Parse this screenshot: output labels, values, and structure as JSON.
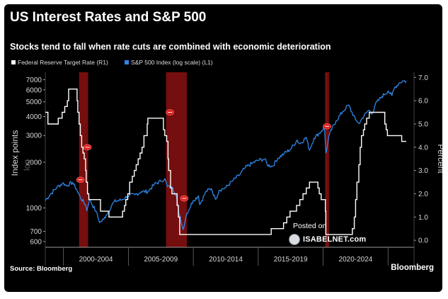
{
  "chart_data": {
    "type": "line",
    "title": "US Interest Rates and S&P 500",
    "subtitle": "Stocks tend to fall when rate cuts are combined with economic deterioration",
    "legend": [
      {
        "name": "Federal Reserve Target Rate (R1)",
        "color": "#ffffff"
      },
      {
        "name": "S&P 500 Index (log scale) (L1)",
        "color": "#2f86e8"
      }
    ],
    "xlim": [
      1998.6,
      2027.0
    ],
    "x_ticks": [
      "2000-2004",
      "2005-2009",
      "2010-2014",
      "2015-2019",
      "2020-2024"
    ],
    "left_axis": {
      "label": "Index points",
      "label2": "log",
      "scale": "log",
      "range": [
        550,
        7500
      ],
      "ticks": [
        600,
        700,
        1000,
        2000,
        3000,
        4000,
        5000,
        6000,
        7000
      ]
    },
    "right_axis": {
      "label": "Percent",
      "range": [
        -0.3,
        7.1
      ],
      "ticks": [
        0.0,
        1.0,
        2.0,
        3.0,
        4.0,
        5.0,
        6.0,
        7.0
      ]
    },
    "recessions": [
      [
        2001.2,
        2001.9
      ],
      [
        2007.9,
        2009.5
      ],
      [
        2020.15,
        2020.45
      ]
    ],
    "rate_cut_markers": [
      {
        "x": 2001.3,
        "rate": 2.6
      },
      {
        "x": 2001.85,
        "rate": 4.0
      },
      {
        "x": 2008.2,
        "rate": 5.5
      },
      {
        "x": 2009.3,
        "rate": 1.8
      },
      {
        "x": 2020.3,
        "rate": 4.9
      }
    ],
    "series": [
      {
        "name": "Federal Reserve Target Rate",
        "axis": "right",
        "step": true,
        "points": [
          [
            1998.6,
            5.5
          ],
          [
            1998.8,
            5.0
          ],
          [
            1999.5,
            5.0
          ],
          [
            1999.6,
            5.25
          ],
          [
            1999.9,
            5.5
          ],
          [
            2000.1,
            5.75
          ],
          [
            2000.3,
            6.0
          ],
          [
            2000.4,
            6.5
          ],
          [
            2001.0,
            6.5
          ],
          [
            2001.05,
            6.0
          ],
          [
            2001.1,
            5.5
          ],
          [
            2001.2,
            5.0
          ],
          [
            2001.3,
            4.5
          ],
          [
            2001.4,
            4.0
          ],
          [
            2001.5,
            3.75
          ],
          [
            2001.6,
            3.5
          ],
          [
            2001.7,
            3.0
          ],
          [
            2001.75,
            2.5
          ],
          [
            2001.85,
            2.0
          ],
          [
            2001.95,
            1.75
          ],
          [
            2002.85,
            1.25
          ],
          [
            2003.5,
            1.0
          ],
          [
            2004.5,
            1.0
          ],
          [
            2004.55,
            1.25
          ],
          [
            2004.7,
            1.5
          ],
          [
            2004.8,
            1.75
          ],
          [
            2004.95,
            2.0
          ],
          [
            2005.1,
            2.5
          ],
          [
            2005.3,
            2.75
          ],
          [
            2005.45,
            3.0
          ],
          [
            2005.6,
            3.25
          ],
          [
            2005.75,
            3.5
          ],
          [
            2005.9,
            3.75
          ],
          [
            2006.05,
            4.0
          ],
          [
            2006.2,
            4.5
          ],
          [
            2006.45,
            5.0
          ],
          [
            2006.5,
            5.25
          ],
          [
            2007.6,
            5.25
          ],
          [
            2007.7,
            4.75
          ],
          [
            2007.8,
            4.5
          ],
          [
            2007.95,
            4.25
          ],
          [
            2008.05,
            3.5
          ],
          [
            2008.1,
            3.0
          ],
          [
            2008.25,
            2.25
          ],
          [
            2008.35,
            2.0
          ],
          [
            2008.75,
            1.5
          ],
          [
            2008.85,
            1.0
          ],
          [
            2008.95,
            0.25
          ],
          [
            2015.95,
            0.25
          ],
          [
            2016.0,
            0.5
          ],
          [
            2016.95,
            0.75
          ],
          [
            2017.2,
            1.0
          ],
          [
            2017.45,
            1.25
          ],
          [
            2017.95,
            1.5
          ],
          [
            2018.2,
            1.75
          ],
          [
            2018.45,
            2.0
          ],
          [
            2018.7,
            2.25
          ],
          [
            2018.95,
            2.5
          ],
          [
            2019.55,
            2.5
          ],
          [
            2019.6,
            2.25
          ],
          [
            2019.7,
            2.0
          ],
          [
            2019.85,
            1.75
          ],
          [
            2020.17,
            1.25
          ],
          [
            2020.21,
            0.25
          ],
          [
            2022.2,
            0.25
          ],
          [
            2022.25,
            0.5
          ],
          [
            2022.4,
            1.0
          ],
          [
            2022.5,
            1.75
          ],
          [
            2022.6,
            2.5
          ],
          [
            2022.75,
            3.25
          ],
          [
            2022.85,
            4.0
          ],
          [
            2022.95,
            4.5
          ],
          [
            2023.1,
            4.75
          ],
          [
            2023.2,
            5.0
          ],
          [
            2023.35,
            5.25
          ],
          [
            2023.55,
            5.5
          ],
          [
            2024.7,
            5.5
          ],
          [
            2024.75,
            5.0
          ],
          [
            2024.85,
            4.75
          ],
          [
            2024.95,
            4.5
          ],
          [
            2026.0,
            4.5
          ],
          [
            2026.05,
            4.25
          ],
          [
            2026.4,
            4.25
          ]
        ]
      },
      {
        "name": "S&P 500 Index",
        "axis": "left",
        "points": [
          [
            1998.6,
            1120
          ],
          [
            1999.0,
            1230
          ],
          [
            1999.5,
            1370
          ],
          [
            2000.0,
            1460
          ],
          [
            2000.2,
            1400
          ],
          [
            2000.7,
            1470
          ],
          [
            2001.0,
            1330
          ],
          [
            2001.3,
            1170
          ],
          [
            2001.7,
            1050
          ],
          [
            2001.8,
            960
          ],
          [
            2002.0,
            1140
          ],
          [
            2002.5,
            950
          ],
          [
            2002.8,
            800
          ],
          [
            2003.1,
            840
          ],
          [
            2003.3,
            900
          ],
          [
            2003.9,
            1100
          ],
          [
            2004.5,
            1130
          ],
          [
            2004.95,
            1200
          ],
          [
            2005.5,
            1220
          ],
          [
            2006.0,
            1280
          ],
          [
            2006.5,
            1280
          ],
          [
            2007.0,
            1430
          ],
          [
            2007.5,
            1500
          ],
          [
            2007.8,
            1560
          ],
          [
            2008.0,
            1380
          ],
          [
            2008.4,
            1370
          ],
          [
            2008.7,
            1200
          ],
          [
            2008.9,
            900
          ],
          [
            2009.0,
            860
          ],
          [
            2009.2,
            720
          ],
          [
            2009.5,
            920
          ],
          [
            2010.0,
            1120
          ],
          [
            2010.4,
            1200
          ],
          [
            2010.5,
            1050
          ],
          [
            2011.0,
            1290
          ],
          [
            2011.4,
            1340
          ],
          [
            2011.7,
            1140
          ],
          [
            2012.0,
            1310
          ],
          [
            2012.5,
            1360
          ],
          [
            2013.0,
            1500
          ],
          [
            2013.5,
            1630
          ],
          [
            2014.0,
            1840
          ],
          [
            2014.5,
            1960
          ],
          [
            2015.0,
            2060
          ],
          [
            2015.5,
            2100
          ],
          [
            2015.7,
            1920
          ],
          [
            2016.1,
            1880
          ],
          [
            2016.5,
            2120
          ],
          [
            2017.0,
            2280
          ],
          [
            2017.5,
            2440
          ],
          [
            2018.0,
            2800
          ],
          [
            2018.2,
            2640
          ],
          [
            2018.7,
            2920
          ],
          [
            2018.95,
            2400
          ],
          [
            2019.3,
            2880
          ],
          [
            2019.9,
            3230
          ],
          [
            2020.1,
            3380
          ],
          [
            2020.22,
            2300
          ],
          [
            2020.5,
            3100
          ],
          [
            2021.0,
            3750
          ],
          [
            2021.5,
            4300
          ],
          [
            2021.95,
            4770
          ],
          [
            2022.5,
            3800
          ],
          [
            2022.8,
            3600
          ],
          [
            2023.0,
            3900
          ],
          [
            2023.5,
            4400
          ],
          [
            2023.8,
            4200
          ],
          [
            2024.0,
            4770
          ],
          [
            2024.5,
            5400
          ],
          [
            2025.0,
            5900
          ],
          [
            2025.3,
            5500
          ],
          [
            2025.5,
            6200
          ],
          [
            2025.9,
            6700
          ],
          [
            2026.2,
            6900
          ],
          [
            2026.4,
            6800
          ]
        ]
      }
    ]
  },
  "source": "Source: Bloomberg",
  "brand": "Bloomberg",
  "watermark": {
    "posted": "Posted on",
    "site": "ISABELNET.com"
  },
  "colors": {
    "background": "#000000",
    "sp500": "#2f86e8",
    "rate": "#ffffff",
    "recession": "#8a1010",
    "marker": "#e01d1d"
  }
}
